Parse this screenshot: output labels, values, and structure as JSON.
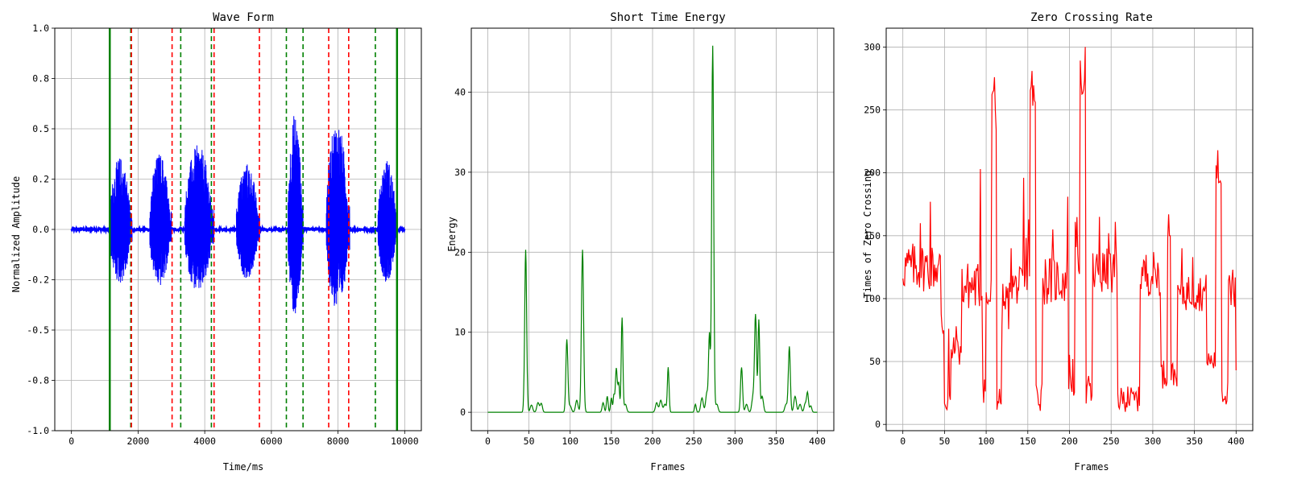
{
  "chart_data": [
    {
      "type": "line",
      "title": "Wave Form",
      "xlabel": "Time/ms",
      "ylabel": "Normalized Amplitude",
      "xlim": [
        -500,
        10500
      ],
      "ylim": [
        -1.0,
        1.0
      ],
      "xticks": [
        0,
        2000,
        4000,
        6000,
        8000,
        10000
      ],
      "yticks": [
        -1.0,
        -0.75,
        -0.5,
        -0.25,
        0.0,
        0.25,
        0.5,
        0.75,
        1.0
      ],
      "yticklabels": [
        "-1.0",
        "-0.8",
        "-0.5",
        "-0.2",
        "0.0",
        "0.2",
        "0.5",
        "0.8",
        "1.0"
      ],
      "grid": true,
      "color": "#0000ff",
      "bursts": [
        {
          "start": 1150,
          "end": 1820,
          "peak": 0.36
        },
        {
          "start": 2350,
          "end": 3000,
          "peak": 0.38
        },
        {
          "start": 3400,
          "end": 4280,
          "peak": 0.42
        },
        {
          "start": 4950,
          "end": 5650,
          "peak": 0.33
        },
        {
          "start": 6500,
          "end": 6950,
          "peak": 0.58
        },
        {
          "start": 7650,
          "end": 8350,
          "peak": 0.54
        },
        {
          "start": 9200,
          "end": 9780,
          "peak": 0.35
        }
      ],
      "vlines": [
        {
          "x": 1150,
          "style": "solid",
          "color": "#008000"
        },
        {
          "x": 1780,
          "style": "dashed",
          "color": "#008000"
        },
        {
          "x": 1800,
          "style": "dashed",
          "color": "#ff0000"
        },
        {
          "x": 3020,
          "style": "dashed",
          "color": "#ff0000"
        },
        {
          "x": 3280,
          "style": "dashed",
          "color": "#008000"
        },
        {
          "x": 4200,
          "style": "dashed",
          "color": "#008000"
        },
        {
          "x": 4280,
          "style": "dashed",
          "color": "#ff0000"
        },
        {
          "x": 5640,
          "style": "dashed",
          "color": "#ff0000"
        },
        {
          "x": 6450,
          "style": "dashed",
          "color": "#008000"
        },
        {
          "x": 6950,
          "style": "dashed",
          "color": "#008000"
        },
        {
          "x": 7720,
          "style": "dashed",
          "color": "#ff0000"
        },
        {
          "x": 8320,
          "style": "dashed",
          "color": "#ff0000"
        },
        {
          "x": 9120,
          "style": "dashed",
          "color": "#008000"
        },
        {
          "x": 9770,
          "style": "solid",
          "color": "#008000"
        }
      ]
    },
    {
      "type": "line",
      "title": "Short Time Energy",
      "xlabel": "Frames",
      "ylabel": "Energy",
      "xlim": [
        -20,
        420
      ],
      "ylim": [
        -2.3,
        48
      ],
      "xticks": [
        0,
        50,
        100,
        150,
        200,
        250,
        300,
        350,
        400
      ],
      "yticks": [
        0,
        10,
        20,
        30,
        40
      ],
      "grid": true,
      "color": "#008000",
      "peaks": [
        [
          46,
          20.3,
          1.2
        ],
        [
          53,
          0.9,
          1.5
        ],
        [
          61,
          1.2,
          1.5
        ],
        [
          65,
          1.1,
          1.3
        ],
        [
          96,
          9.1,
          1.2
        ],
        [
          100,
          0.8,
          1.5
        ],
        [
          108,
          1.5,
          1.5
        ],
        [
          115,
          20.3,
          1.3
        ],
        [
          140,
          1.2,
          1.2
        ],
        [
          145,
          2.0,
          1.0
        ],
        [
          150,
          1.8,
          1.0
        ],
        [
          153,
          2.0,
          0.8
        ],
        [
          156,
          5.5,
          1.2
        ],
        [
          159,
          3.5,
          1.0
        ],
        [
          163,
          11.8,
          1.0
        ],
        [
          167,
          1.0,
          1.5
        ],
        [
          205,
          1.2,
          1.5
        ],
        [
          210,
          1.5,
          1.5
        ],
        [
          215,
          1.0,
          1.5
        ],
        [
          219,
          5.6,
          1.0
        ],
        [
          252,
          1.0,
          1.0
        ],
        [
          260,
          1.8,
          1.5
        ],
        [
          266,
          2.5,
          1.5
        ],
        [
          269,
          9.5,
          1.0
        ],
        [
          273,
          45.8,
          1.2
        ],
        [
          278,
          1.0,
          1.5
        ],
        [
          308,
          5.6,
          1.2
        ],
        [
          314,
          1.0,
          1.5
        ],
        [
          322,
          2.0,
          1.5
        ],
        [
          325,
          12.0,
          1.2
        ],
        [
          329,
          11.5,
          1.0
        ],
        [
          333,
          2.0,
          1.5
        ],
        [
          362,
          1.0,
          1.5
        ],
        [
          366,
          8.2,
          1.2
        ],
        [
          373,
          2.0,
          1.5
        ],
        [
          379,
          1.0,
          1.5
        ],
        [
          385,
          1.0,
          1.2
        ],
        [
          388,
          2.5,
          1.2
        ],
        [
          392,
          0.8,
          1.2
        ]
      ]
    },
    {
      "type": "line",
      "title": "Zero Crossing Rate",
      "xlabel": "Frames",
      "ylabel": "Times of Zero Crossing",
      "xlim": [
        -20,
        420
      ],
      "ylim": [
        -5,
        315
      ],
      "xticks": [
        0,
        50,
        100,
        150,
        200,
        250,
        300,
        350,
        400
      ],
      "yticks": [
        0,
        50,
        100,
        150,
        200,
        250,
        300
      ],
      "grid": true,
      "color": "#ff0000",
      "segments": [
        {
          "x": [
            0,
            45
          ],
          "base": 125,
          "amp": 20,
          "spikes": [
            [
              21,
              160
            ],
            [
              33,
              177
            ]
          ]
        },
        {
          "x": [
            46,
            50
          ],
          "base": 80,
          "amp": 20,
          "spikes": []
        },
        {
          "x": [
            50,
            58
          ],
          "base": 18,
          "amp": 10,
          "spikes": [
            [
              55,
              76
            ]
          ]
        },
        {
          "x": [
            58,
            70
          ],
          "base": 58,
          "amp": 12,
          "spikes": [
            [
              64,
              78
            ]
          ]
        },
        {
          "x": [
            71,
            96
          ],
          "base": 110,
          "amp": 20,
          "spikes": [
            [
              93,
              203
            ]
          ]
        },
        {
          "x": [
            96,
            100
          ],
          "base": 30,
          "amp": 15,
          "spikes": []
        },
        {
          "x": [
            100,
            107
          ],
          "base": 100,
          "amp": 20,
          "spikes": []
        },
        {
          "x": [
            107,
            113
          ],
          "base": 250,
          "amp": 20,
          "spikes": [
            [
              110,
              276
            ]
          ]
        },
        {
          "x": [
            113,
            119
          ],
          "base": 20,
          "amp": 10,
          "spikes": []
        },
        {
          "x": [
            119,
            131
          ],
          "base": 95,
          "amp": 20,
          "spikes": [
            [
              130,
              140
            ]
          ]
        },
        {
          "x": [
            131,
            148
          ],
          "base": 110,
          "amp": 15,
          "spikes": [
            [
              145,
              196
            ]
          ]
        },
        {
          "x": [
            148,
            153
          ],
          "base": 130,
          "amp": 25,
          "spikes": [
            [
              151,
              163
            ]
          ]
        },
        {
          "x": [
            153,
            160
          ],
          "base": 255,
          "amp": 20,
          "spikes": [
            [
              155,
              281
            ]
          ]
        },
        {
          "x": [
            160,
            168
          ],
          "base": 25,
          "amp": 15,
          "spikes": []
        },
        {
          "x": [
            168,
            198
          ],
          "base": 115,
          "amp": 20,
          "spikes": [
            [
              180,
              155
            ],
            [
              198,
              181
            ]
          ]
        },
        {
          "x": [
            198,
            207
          ],
          "base": 40,
          "amp": 20,
          "spikes": []
        },
        {
          "x": [
            207,
            213
          ],
          "base": 140,
          "amp": 25,
          "spikes": []
        },
        {
          "x": [
            213,
            220
          ],
          "base": 275,
          "amp": 15,
          "spikes": [
            [
              219,
              300
            ]
          ]
        },
        {
          "x": [
            220,
            228
          ],
          "base": 25,
          "amp": 15,
          "spikes": []
        },
        {
          "x": [
            228,
            258
          ],
          "base": 120,
          "amp": 20,
          "spikes": [
            [
              236,
              165
            ],
            [
              247,
              152
            ],
            [
              255,
              161
            ]
          ]
        },
        {
          "x": [
            258,
            285
          ],
          "base": 20,
          "amp": 10,
          "spikes": [
            [
              270,
              30
            ]
          ]
        },
        {
          "x": [
            285,
            310
          ],
          "base": 120,
          "amp": 18,
          "spikes": []
        },
        {
          "x": [
            310,
            318
          ],
          "base": 40,
          "amp": 12,
          "spikes": []
        },
        {
          "x": [
            318,
            322
          ],
          "base": 155,
          "amp": 12,
          "spikes": [
            [
              319,
              167
            ]
          ]
        },
        {
          "x": [
            322,
            330
          ],
          "base": 40,
          "amp": 10,
          "spikes": []
        },
        {
          "x": [
            330,
            365
          ],
          "base": 105,
          "amp": 15,
          "spikes": [
            [
              335,
              140
            ],
            [
              348,
              133
            ]
          ]
        },
        {
          "x": [
            365,
            376
          ],
          "base": 50,
          "amp": 10,
          "spikes": []
        },
        {
          "x": [
            376,
            383
          ],
          "base": 195,
          "amp": 12,
          "spikes": [
            [
              378,
              218
            ]
          ]
        },
        {
          "x": [
            383,
            391
          ],
          "base": 25,
          "amp": 10,
          "spikes": []
        },
        {
          "x": [
            391,
            400
          ],
          "base": 100,
          "amp": 20,
          "spikes": [
            [
              396,
              123
            ],
            [
              400,
              43
            ]
          ]
        }
      ]
    }
  ]
}
